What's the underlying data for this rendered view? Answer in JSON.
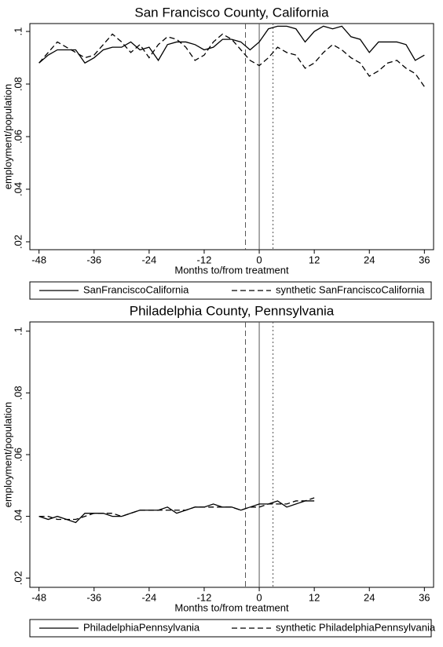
{
  "chart_data": [
    {
      "type": "line",
      "title": "San Francisco County, California",
      "x_label": "Months to/from treatment",
      "y_label": "employment/population",
      "x": [
        -48,
        -46,
        -44,
        -42,
        -40,
        -38,
        -36,
        -34,
        -32,
        -30,
        -28,
        -26,
        -24,
        -22,
        -20,
        -18,
        -16,
        -14,
        -12,
        -10,
        -8,
        -6,
        -4,
        -2,
        0,
        2,
        4,
        6,
        8,
        10,
        12,
        14,
        16,
        18,
        20,
        22,
        24,
        26,
        28,
        30,
        32,
        34,
        36
      ],
      "series": [
        {
          "name": "SanFranciscoCalifornia",
          "color": "#000000",
          "dash": "solid",
          "values": [
            0.088,
            0.091,
            0.093,
            0.093,
            0.093,
            0.088,
            0.09,
            0.093,
            0.094,
            0.094,
            0.096,
            0.093,
            0.094,
            0.089,
            0.095,
            0.096,
            0.096,
            0.095,
            0.093,
            0.094,
            0.097,
            0.097,
            0.096,
            0.093,
            0.096,
            0.101,
            0.102,
            0.102,
            0.101,
            0.096,
            0.1,
            0.102,
            0.101,
            0.102,
            0.098,
            0.097,
            0.092,
            0.096,
            0.096,
            0.096,
            0.095,
            0.089,
            0.091
          ]
        },
        {
          "name": "synthetic SanFranciscoCalifornia",
          "color": "#000000",
          "dash": "dashed",
          "values": [
            0.088,
            0.092,
            0.096,
            0.094,
            0.092,
            0.09,
            0.091,
            0.095,
            0.099,
            0.096,
            0.092,
            0.095,
            0.09,
            0.095,
            0.098,
            0.097,
            0.094,
            0.089,
            0.091,
            0.096,
            0.099,
            0.097,
            0.093,
            0.089,
            0.087,
            0.09,
            0.094,
            0.092,
            0.091,
            0.086,
            0.088,
            0.092,
            0.095,
            0.093,
            0.09,
            0.088,
            0.083,
            0.085,
            0.088,
            0.089,
            0.086,
            0.084,
            0.079
          ]
        }
      ],
      "vlines": [
        {
          "value": -3,
          "style": "dashed"
        },
        {
          "value": 0,
          "style": "solid"
        },
        {
          "value": 3,
          "style": "dotted"
        }
      ],
      "xlim": [
        -50,
        38
      ],
      "xticks": [
        -48,
        -36,
        -24,
        -12,
        0,
        12,
        24,
        36
      ],
      "ylim": [
        0.017,
        0.103
      ],
      "yticks": [
        {
          "value": 0.02,
          "label": ".02"
        },
        {
          "value": 0.04,
          "label": ".04"
        },
        {
          "value": 0.06,
          "label": ".06"
        },
        {
          "value": 0.08,
          "label": ".08"
        },
        {
          "value": 0.1,
          "label": ".1"
        }
      ]
    },
    {
      "type": "line",
      "title": "Philadelphia County, Pennsylvania",
      "x_label": "Months to/from treatment",
      "y_label": "employment/population",
      "x": [
        -48,
        -46,
        -44,
        -42,
        -40,
        -38,
        -36,
        -34,
        -32,
        -30,
        -28,
        -26,
        -24,
        -22,
        -20,
        -18,
        -16,
        -14,
        -12,
        -10,
        -8,
        -6,
        -4,
        -2,
        0,
        2,
        4,
        6,
        8,
        10,
        12
      ],
      "series": [
        {
          "name": "PhiladelphiaPennsylvania",
          "color": "#000000",
          "dash": "solid",
          "values": [
            0.04,
            0.039,
            0.04,
            0.039,
            0.038,
            0.041,
            0.041,
            0.041,
            0.04,
            0.04,
            0.041,
            0.042,
            0.042,
            0.042,
            0.043,
            0.041,
            0.042,
            0.043,
            0.043,
            0.044,
            0.043,
            0.043,
            0.042,
            0.043,
            0.044,
            0.044,
            0.045,
            0.043,
            0.044,
            0.045,
            0.045
          ]
        },
        {
          "name": "synthetic PhiladelphiaPennsylvania",
          "color": "#000000",
          "dash": "dashed",
          "values": [
            0.04,
            0.04,
            0.039,
            0.039,
            0.039,
            0.04,
            0.041,
            0.041,
            0.041,
            0.04,
            0.041,
            0.042,
            0.042,
            0.042,
            0.042,
            0.042,
            0.042,
            0.043,
            0.043,
            0.043,
            0.043,
            0.043,
            0.042,
            0.043,
            0.043,
            0.044,
            0.044,
            0.044,
            0.045,
            0.045,
            0.046
          ]
        }
      ],
      "vlines": [
        {
          "value": -3,
          "style": "dashed"
        },
        {
          "value": 0,
          "style": "solid"
        },
        {
          "value": 3,
          "style": "dotted"
        }
      ],
      "xlim": [
        -50,
        38
      ],
      "xticks": [
        -48,
        -36,
        -24,
        -12,
        0,
        12,
        24,
        36
      ],
      "ylim": [
        0.017,
        0.103
      ],
      "yticks": [
        {
          "value": 0.02,
          "label": ".02"
        },
        {
          "value": 0.04,
          "label": ".04"
        },
        {
          "value": 0.06,
          "label": ".06"
        },
        {
          "value": 0.08,
          "label": ".08"
        },
        {
          "value": 0.1,
          "label": ".1"
        }
      ]
    }
  ]
}
